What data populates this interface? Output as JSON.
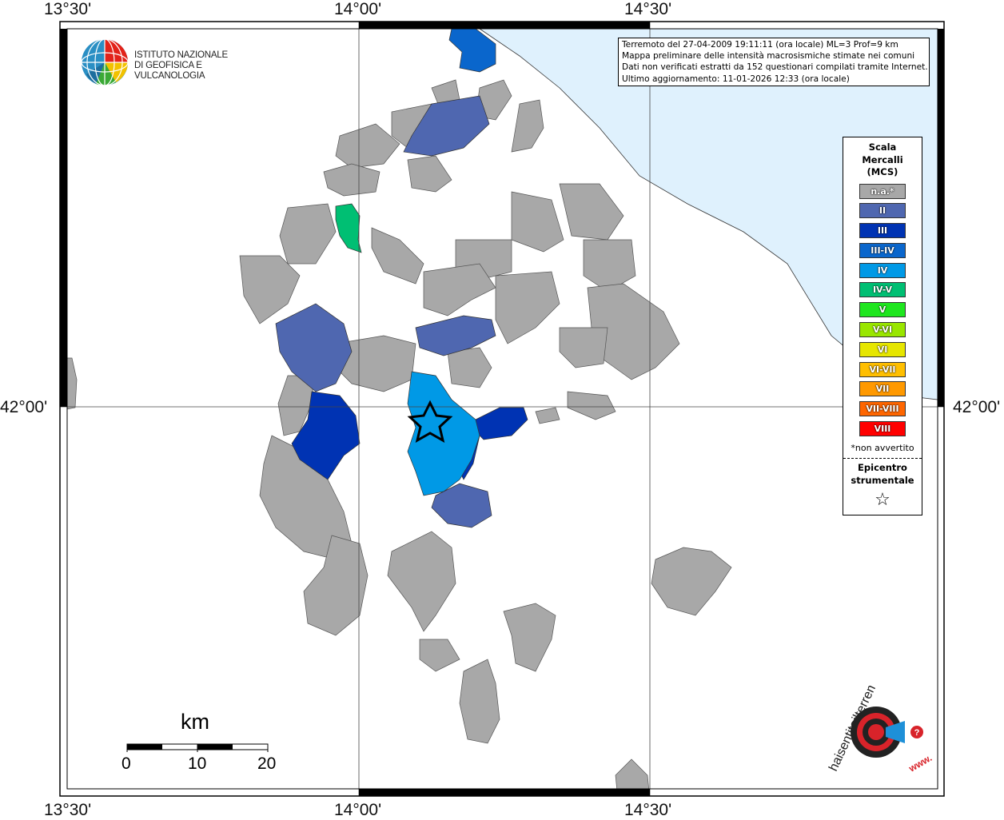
{
  "axis_labels": {
    "top": [
      "13°30'",
      "14°00'",
      "14°30'"
    ],
    "bottom": [
      "13°30'",
      "14°00'",
      "14°30'"
    ],
    "left": "42°00'",
    "right": "42°00'"
  },
  "info_box": {
    "lines": [
      "Terremoto del 27-04-2009 19:11:11 (ora locale) ML=3 Prof=9 km",
      "Mappa preliminare delle intensità macrosismiche stimate nei comuni",
      "Dati non verificati estratti da 152 questionari compilati tramite Internet.",
      "Ultimo aggiornamento: 11-01-2026 12:33 (ora locale)"
    ]
  },
  "logo": {
    "line1": "ISTITUTO NAZIONALE",
    "line2": "DI GEOFISICA E VULCANOLOGIA"
  },
  "legend": {
    "title_lines": [
      "Scala",
      "Mercalli",
      "(MCS)"
    ],
    "items": [
      {
        "label": "n.a.*",
        "color": "#a8a8a8"
      },
      {
        "label": "II",
        "color": "#4f67b0"
      },
      {
        "label": "III",
        "color": "#0033b3"
      },
      {
        "label": "III-IV",
        "color": "#0a66cc"
      },
      {
        "label": "IV",
        "color": "#0099e6"
      },
      {
        "label": "IV-V",
        "color": "#00bf73"
      },
      {
        "label": "V",
        "color": "#1fe61f"
      },
      {
        "label": "V-VI",
        "color": "#99e600"
      },
      {
        "label": "VI",
        "color": "#e6e600"
      },
      {
        "label": "VI-VII",
        "color": "#ffbf00"
      },
      {
        "label": "VII",
        "color": "#ff9900"
      },
      {
        "label": "VII-VIII",
        "color": "#ff6600"
      },
      {
        "label": "VIII",
        "color": "#ff0000"
      }
    ],
    "note": "*non avvertito",
    "epicenter_lines": [
      "Epicentro",
      "strumentale"
    ],
    "epicenter_symbol": "☆"
  },
  "scale_bar": {
    "unit": "km",
    "ticks": [
      "0",
      "10",
      "20"
    ]
  },
  "brand": {
    "text1": "haisentitoilterremoto.it",
    "text2": "www."
  },
  "colors": {
    "sea": "#dff1fd",
    "municipality_na": "#a8a8a8",
    "border": "#000000"
  }
}
